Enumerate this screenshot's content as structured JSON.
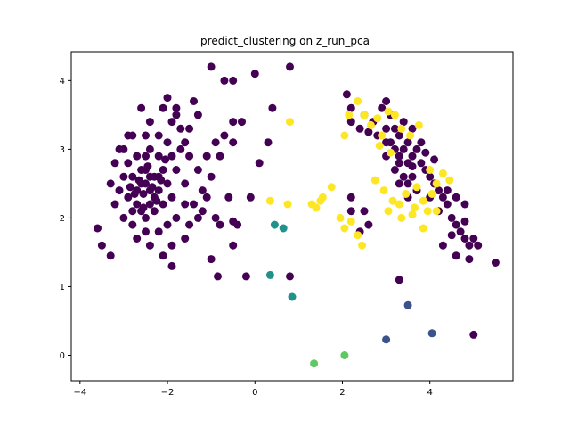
{
  "chart_data": {
    "type": "scatter",
    "title": "predict_clustering on z_run_pca",
    "xlabel": "",
    "ylabel": "",
    "xlim": [
      -4.2,
      5.9
    ],
    "ylim": [
      -0.37,
      4.42
    ],
    "x_ticks": [
      -4,
      -2,
      0,
      2,
      4
    ],
    "y_ticks": [
      0,
      1,
      2,
      3,
      4
    ],
    "x_tick_labels": [
      "−4",
      "−2",
      "0",
      "2",
      "4"
    ],
    "y_tick_labels": [
      "0",
      "1",
      "2",
      "3",
      "4"
    ],
    "grid": false,
    "legend": "none",
    "colors": {
      "cluster_0": "#440154",
      "cluster_1": "#3b528b",
      "cluster_2": "#21918c",
      "cluster_3": "#5ec962",
      "cluster_4": "#fde725"
    },
    "series": [
      {
        "color": "#440154",
        "points": [
          [
            -2.5,
            2.5
          ],
          [
            -2.3,
            2.6
          ],
          [
            -2.7,
            2.4
          ],
          [
            -2.4,
            2.2
          ],
          [
            -2.6,
            2.7
          ],
          [
            -2.2,
            2.4
          ],
          [
            -2.8,
            2.6
          ],
          [
            -2.5,
            2.9
          ],
          [
            -2.3,
            2.1
          ],
          [
            -2.9,
            2.3
          ],
          [
            -2.1,
            2.7
          ],
          [
            -2.6,
            2.1
          ],
          [
            -2.4,
            3.0
          ],
          [
            -2.0,
            2.5
          ],
          [
            -3.0,
            2.6
          ],
          [
            -2.7,
            2.9
          ],
          [
            -2.2,
            2.9
          ],
          [
            -2.5,
            2.0
          ],
          [
            -2.8,
            2.1
          ],
          [
            -1.9,
            2.3
          ],
          [
            -3.1,
            2.4
          ],
          [
            -2.4,
            2.6
          ],
          [
            -2.6,
            2.5
          ],
          [
            -2.3,
            2.3
          ],
          [
            -2.5,
            2.7
          ],
          [
            -2.7,
            2.2
          ],
          [
            -2.1,
            2.2
          ],
          [
            -2.9,
            2.8
          ],
          [
            -2.2,
            2.6
          ],
          [
            -2.4,
            2.4
          ],
          [
            -1.8,
            2.7
          ],
          [
            -1.6,
            2.5
          ],
          [
            -1.5,
            2.9
          ],
          [
            -1.3,
            2.7
          ],
          [
            -1.2,
            2.4
          ],
          [
            -1.4,
            2.2
          ],
          [
            -1.7,
            3.0
          ],
          [
            -1.9,
            2.9
          ],
          [
            -1.6,
            2.2
          ],
          [
            -1.3,
            2.0
          ],
          [
            -1.8,
            2.0
          ],
          [
            -2.0,
            1.9
          ],
          [
            -2.2,
            1.8
          ],
          [
            -2.5,
            1.8
          ],
          [
            -2.8,
            1.9
          ],
          [
            -3.0,
            2.0
          ],
          [
            -3.2,
            2.2
          ],
          [
            -3.3,
            2.5
          ],
          [
            -3.2,
            2.8
          ],
          [
            -3.0,
            3.0
          ],
          [
            -2.8,
            3.2
          ],
          [
            -2.5,
            3.2
          ],
          [
            -2.2,
            3.2
          ],
          [
            -2.0,
            3.1
          ],
          [
            -1.9,
            3.4
          ],
          [
            -2.4,
            3.4
          ],
          [
            -2.6,
            3.6
          ],
          [
            -2.1,
            3.6
          ],
          [
            -1.8,
            3.6
          ],
          [
            -1.4,
            3.7
          ],
          [
            -2.0,
            3.75
          ],
          [
            -1.7,
            3.3
          ],
          [
            -1.5,
            3.3
          ],
          [
            -1.6,
            3.1
          ],
          [
            -1.1,
            2.9
          ],
          [
            -1.0,
            2.6
          ],
          [
            -1.1,
            2.3
          ],
          [
            -1.2,
            2.1
          ],
          [
            -1.5,
            1.9
          ],
          [
            -1.6,
            1.7
          ],
          [
            -1.9,
            1.6
          ],
          [
            -2.1,
            1.45
          ],
          [
            -1.9,
            1.3
          ],
          [
            -2.7,
            1.7
          ],
          [
            -2.4,
            1.6
          ],
          [
            -3.5,
            1.6
          ],
          [
            -3.6,
            1.85
          ],
          [
            -3.3,
            1.45
          ],
          [
            -2.9,
            3.2
          ],
          [
            -3.1,
            3.0
          ],
          [
            -0.8,
            2.9
          ],
          [
            -0.7,
            3.2
          ],
          [
            -0.5,
            3.1
          ],
          [
            -0.3,
            3.4
          ],
          [
            -0.9,
            3.1
          ],
          [
            -0.6,
            2.3
          ],
          [
            -0.9,
            2.0
          ],
          [
            -0.8,
            1.9
          ],
          [
            -0.4,
            1.9
          ],
          [
            -0.5,
            1.6
          ],
          [
            -0.5,
            1.95
          ],
          [
            -0.1,
            2.3
          ],
          [
            0.1,
            2.8
          ],
          [
            0.3,
            3.1
          ],
          [
            0.4,
            3.6
          ],
          [
            0.0,
            4.1
          ],
          [
            -1.0,
            4.2
          ],
          [
            -0.7,
            4.0
          ],
          [
            -0.5,
            4.0
          ],
          [
            0.8,
            4.2
          ],
          [
            -1.0,
            1.4
          ],
          [
            -0.85,
            1.15
          ],
          [
            -0.2,
            1.15
          ],
          [
            0.8,
            1.15
          ],
          [
            -0.5,
            3.4
          ],
          [
            -1.3,
            3.5
          ],
          [
            -1.8,
            3.5
          ],
          [
            -2.55,
            2.35
          ],
          [
            -2.35,
            2.45
          ],
          [
            -2.65,
            2.55
          ],
          [
            -2.45,
            2.75
          ],
          [
            -2.25,
            2.25
          ],
          [
            -2.75,
            2.35
          ],
          [
            -2.15,
            2.55
          ],
          [
            -2.55,
            2.15
          ],
          [
            -2.85,
            2.45
          ],
          [
            -2.05,
            2.85
          ],
          [
            2.1,
            3.8
          ],
          [
            2.2,
            3.6
          ],
          [
            2.5,
            3.5
          ],
          [
            2.7,
            3.4
          ],
          [
            2.9,
            3.6
          ],
          [
            3.0,
            3.7
          ],
          [
            3.1,
            3.5
          ],
          [
            3.2,
            3.3
          ],
          [
            3.3,
            3.2
          ],
          [
            3.0,
            3.3
          ],
          [
            3.4,
            3.0
          ],
          [
            3.5,
            3.1
          ],
          [
            3.6,
            2.9
          ],
          [
            3.7,
            3.0
          ],
          [
            3.8,
            2.8
          ],
          [
            3.9,
            2.7
          ],
          [
            3.6,
            2.6
          ],
          [
            3.5,
            2.8
          ],
          [
            3.3,
            2.9
          ],
          [
            3.2,
            2.7
          ],
          [
            4.0,
            2.6
          ],
          [
            4.1,
            2.5
          ],
          [
            4.2,
            2.4
          ],
          [
            4.3,
            2.3
          ],
          [
            4.4,
            2.2
          ],
          [
            4.5,
            2.0
          ],
          [
            4.6,
            1.9
          ],
          [
            4.7,
            1.8
          ],
          [
            4.8,
            1.7
          ],
          [
            4.9,
            1.6
          ],
          [
            3.1,
            3.1
          ],
          [
            3.4,
            3.4
          ],
          [
            3.6,
            3.3
          ],
          [
            3.8,
            3.1
          ],
          [
            3.4,
            2.6
          ],
          [
            3.0,
            2.9
          ],
          [
            2.8,
            3.2
          ],
          [
            3.2,
            3.0
          ],
          [
            3.5,
            2.5
          ],
          [
            3.7,
            2.4
          ],
          [
            4.0,
            2.3
          ],
          [
            4.2,
            2.1
          ],
          [
            4.4,
            2.4
          ],
          [
            4.6,
            2.3
          ],
          [
            4.8,
            2.2
          ],
          [
            4.8,
            1.95
          ],
          [
            4.5,
            1.75
          ],
          [
            4.3,
            1.6
          ],
          [
            4.6,
            1.45
          ],
          [
            4.9,
            1.4
          ],
          [
            5.1,
            1.6
          ],
          [
            5.0,
            1.7
          ],
          [
            5.5,
            1.35
          ],
          [
            5.0,
            0.3
          ],
          [
            3.3,
            1.1
          ],
          [
            2.2,
            2.3
          ],
          [
            2.2,
            2.1
          ],
          [
            2.4,
            1.8
          ],
          [
            2.6,
            1.9
          ],
          [
            2.5,
            2.1
          ],
          [
            2.2,
            3.4
          ],
          [
            2.4,
            3.3
          ],
          [
            2.6,
            3.25
          ],
          [
            3.0,
            3.1
          ],
          [
            3.3,
            2.8
          ],
          [
            3.5,
            2.3
          ],
          [
            3.9,
            2.95
          ],
          [
            4.1,
            2.85
          ],
          [
            3.6,
            2.75
          ],
          [
            3.3,
            2.5
          ]
        ]
      },
      {
        "color": "#3b528b",
        "points": [
          [
            3.0,
            0.23
          ],
          [
            3.5,
            0.73
          ],
          [
            4.05,
            0.32
          ]
        ]
      },
      {
        "color": "#21918c",
        "points": [
          [
            0.45,
            1.9
          ],
          [
            0.65,
            1.85
          ],
          [
            0.35,
            1.17
          ],
          [
            0.85,
            0.85
          ]
        ]
      },
      {
        "color": "#5ec962",
        "points": [
          [
            1.35,
            -0.12
          ],
          [
            2.05,
            0.0
          ]
        ]
      },
      {
        "color": "#fde725",
        "points": [
          [
            0.8,
            3.4
          ],
          [
            0.35,
            2.25
          ],
          [
            0.75,
            2.2
          ],
          [
            1.3,
            2.2
          ],
          [
            1.4,
            2.15
          ],
          [
            1.5,
            2.25
          ],
          [
            1.55,
            2.3
          ],
          [
            1.75,
            2.45
          ],
          [
            1.95,
            2.0
          ],
          [
            2.05,
            1.85
          ],
          [
            2.2,
            1.95
          ],
          [
            2.35,
            1.75
          ],
          [
            2.45,
            1.6
          ],
          [
            2.05,
            3.2
          ],
          [
            2.15,
            3.5
          ],
          [
            2.35,
            3.7
          ],
          [
            2.5,
            3.5
          ],
          [
            2.65,
            3.35
          ],
          [
            2.8,
            3.45
          ],
          [
            2.9,
            3.2
          ],
          [
            3.05,
            3.55
          ],
          [
            3.2,
            3.5
          ],
          [
            3.35,
            3.3
          ],
          [
            3.55,
            3.2
          ],
          [
            3.75,
            3.35
          ],
          [
            2.85,
            3.05
          ],
          [
            3.1,
            2.95
          ],
          [
            2.75,
            2.55
          ],
          [
            2.95,
            2.4
          ],
          [
            3.15,
            2.25
          ],
          [
            3.05,
            2.1
          ],
          [
            3.3,
            2.2
          ],
          [
            3.45,
            2.35
          ],
          [
            3.7,
            2.45
          ],
          [
            3.65,
            2.15
          ],
          [
            3.85,
            2.25
          ],
          [
            4.05,
            2.35
          ],
          [
            4.15,
            2.5
          ],
          [
            3.95,
            2.1
          ],
          [
            4.15,
            2.1
          ],
          [
            4.3,
            2.65
          ],
          [
            4.45,
            2.55
          ],
          [
            3.85,
            1.85
          ],
          [
            3.35,
            2.0
          ],
          [
            3.6,
            2.05
          ],
          [
            4.0,
            2.7
          ]
        ]
      }
    ]
  }
}
